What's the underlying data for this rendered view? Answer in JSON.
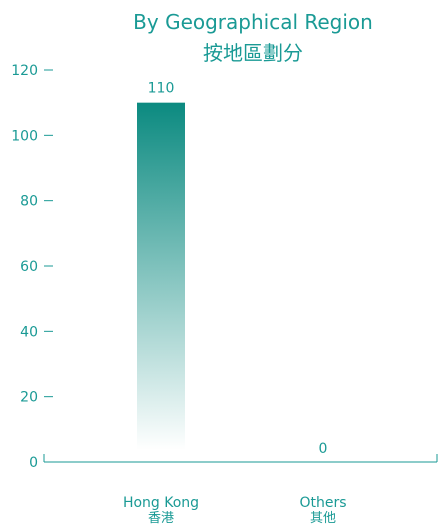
{
  "chart_data": {
    "type": "bar",
    "title": "By Geographical Region",
    "subtitle": "按地區劃分",
    "categories": [
      "Hong Kong",
      "Others"
    ],
    "categories_sub": [
      "香港",
      "其他"
    ],
    "values": [
      110,
      0
    ],
    "data_labels": [
      "110",
      "0"
    ],
    "ylim": [
      0,
      120
    ],
    "yticks": [
      0,
      20,
      40,
      60,
      80,
      100,
      120
    ],
    "xlabel": "",
    "ylabel": "",
    "grid": false,
    "colors": {
      "accent": "#1a9a95",
      "bar_top": "#0b8a80",
      "bar_bottom": "#ffffff"
    }
  }
}
